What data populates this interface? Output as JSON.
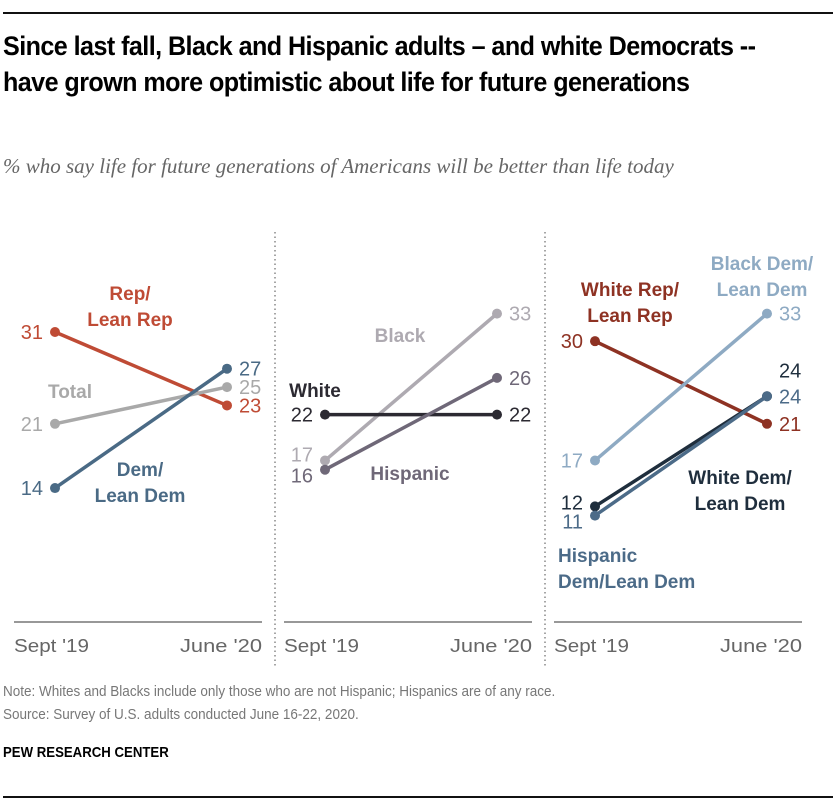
{
  "header": {
    "title": "Since last fall, Black and Hispanic adults – and white Democrats -- have grown more optimistic about life for future generations",
    "subtitle": "% who say life for future generations of Americans will be better than life today"
  },
  "footer": {
    "note": "Note: Whites and Blacks include only those who are not Hispanic; Hispanics are of any race.",
    "source": "Source: Survey of U.S. adults conducted June 16-22, 2020.",
    "brand": "PEW RESEARCH CENTER"
  },
  "chart_data": [
    {
      "type": "line",
      "panel": "partisanship",
      "x": [
        "Sept '19",
        "June '20"
      ],
      "series": [
        {
          "name": "Rep/ Lean Rep",
          "label_lines": [
            "Rep/",
            "Lean Rep"
          ],
          "values": [
            31,
            23
          ],
          "color": "#bf4b35"
        },
        {
          "name": "Total",
          "label_lines": [
            "Total"
          ],
          "values": [
            21,
            25
          ],
          "color": "#a9a9a9"
        },
        {
          "name": "Dem/ Lean Dem",
          "label_lines": [
            "Dem/",
            "Lean Dem"
          ],
          "values": [
            14,
            27
          ],
          "color": "#4a6a85"
        }
      ]
    },
    {
      "type": "line",
      "panel": "race",
      "x": [
        "Sept '19",
        "June '20"
      ],
      "series": [
        {
          "name": "Black",
          "label_lines": [
            "Black"
          ],
          "values": [
            17,
            33
          ],
          "color": "#aeaab1"
        },
        {
          "name": "White",
          "label_lines": [
            "White"
          ],
          "values": [
            22,
            22
          ],
          "color": "#2c2a32"
        },
        {
          "name": "Hispanic",
          "label_lines": [
            "Hispanic"
          ],
          "values": [
            16,
            26
          ],
          "color": "#6f6878"
        }
      ]
    },
    {
      "type": "line",
      "panel": "race-by-party",
      "x": [
        "Sept '19",
        "June '20"
      ],
      "series": [
        {
          "name": "White Rep/ Lean Rep",
          "label_lines": [
            "White Rep/",
            "Lean Rep"
          ],
          "values": [
            30,
            21
          ],
          "color": "#8e3223"
        },
        {
          "name": "Black Dem/ Lean Dem",
          "label_lines": [
            "Black Dem/",
            "Lean Dem"
          ],
          "values": [
            17,
            33
          ],
          "color": "#8eaac3"
        },
        {
          "name": "White Dem/ Lean Dem",
          "label_lines": [
            "White Dem/",
            "Lean Dem"
          ],
          "values": [
            12,
            24
          ],
          "color": "#1f2e3d"
        },
        {
          "name": "Hispanic Dem/Lean Dem",
          "label_lines": [
            "Hispanic",
            "Dem/Lean Dem"
          ],
          "values": [
            11,
            24
          ],
          "color": "#4c6b88"
        }
      ]
    }
  ]
}
